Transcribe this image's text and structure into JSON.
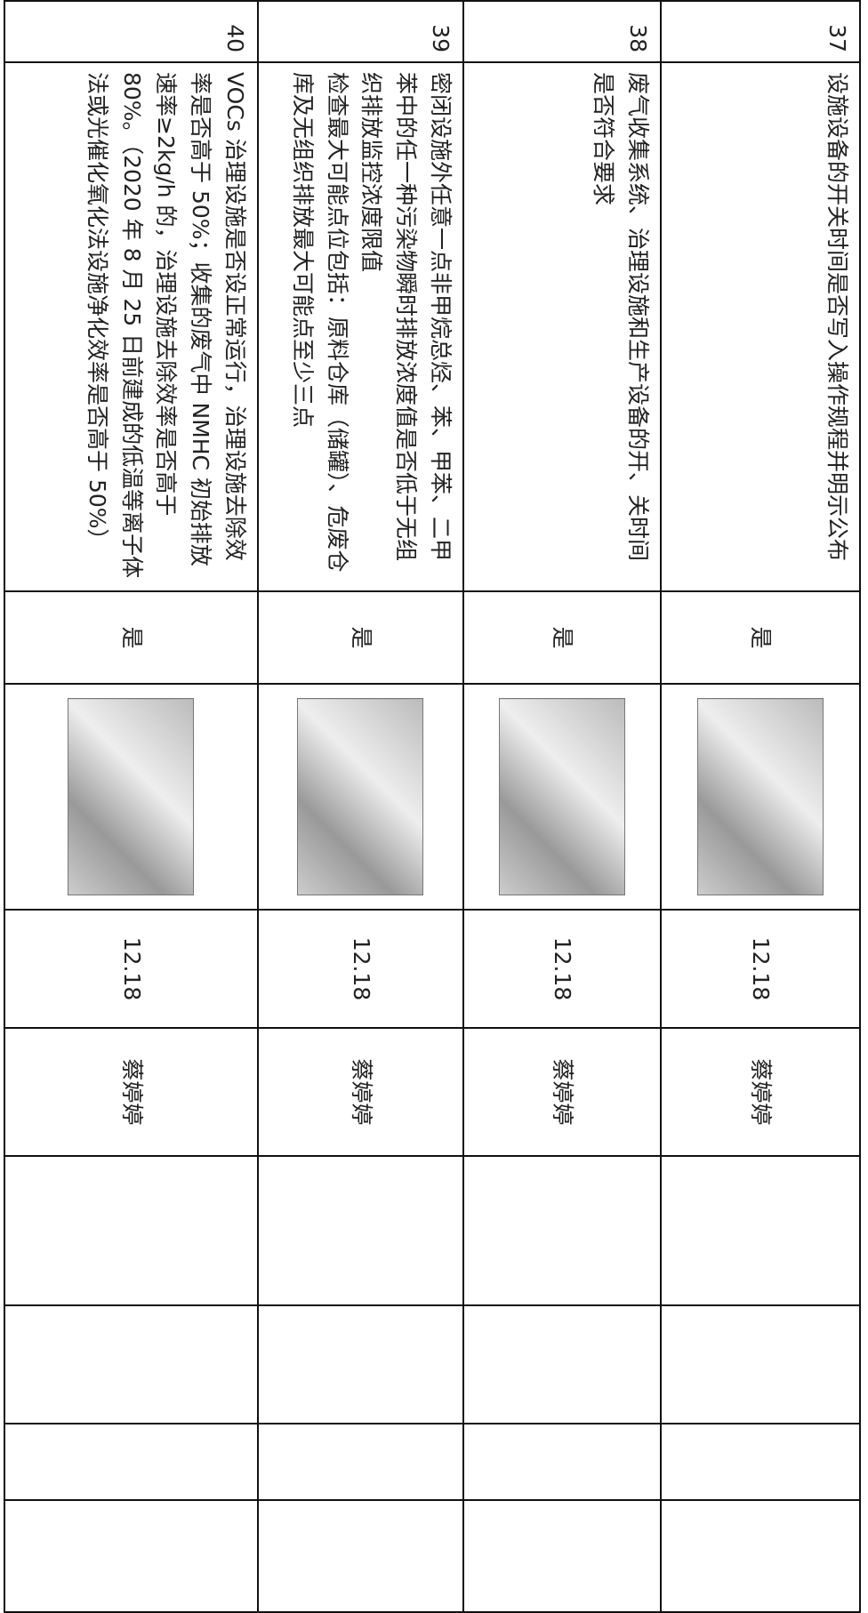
{
  "table": {
    "rows": [
      {
        "number": "37",
        "content": [
          "设施设备的开关时间是否写入操作规程并明示公布"
        ],
        "result": "是",
        "date": "12.18",
        "person": "蔡婷婷"
      },
      {
        "number": "38",
        "content": [
          "废气收集系统、治理设施和生产设备的开、关时间是否符合要求"
        ],
        "result": "是",
        "date": "12.18",
        "person": "蔡婷婷"
      },
      {
        "number": "39",
        "content": [
          "密闭设施外任意一点非甲烷总烃、苯、甲苯、二甲苯中的任一种污染物瞬时排放浓度值是否低于无组织排放监控浓度限值",
          "检查最大可能点位包括：原料仓库（储罐）、危废仓库及无组织排放最大可能点至少三点"
        ],
        "result": "是",
        "date": "12.18",
        "person": "蔡婷婷"
      },
      {
        "number": "40",
        "content": [
          "VOCs 治理设施是否设正常运行，治理设施去除效率是否高于 50%；收集的废气中 NMHC 初始排放速率≥2kg/h 的，治理设施去除效率是否高于 80%。（2020 年 8 月 25 日前建成的低温等离子体法或光催化氧化法设施净化效率是否高于 50%）"
        ],
        "result": "是",
        "date": "12.18",
        "person": "蔡婷婷"
      }
    ]
  }
}
